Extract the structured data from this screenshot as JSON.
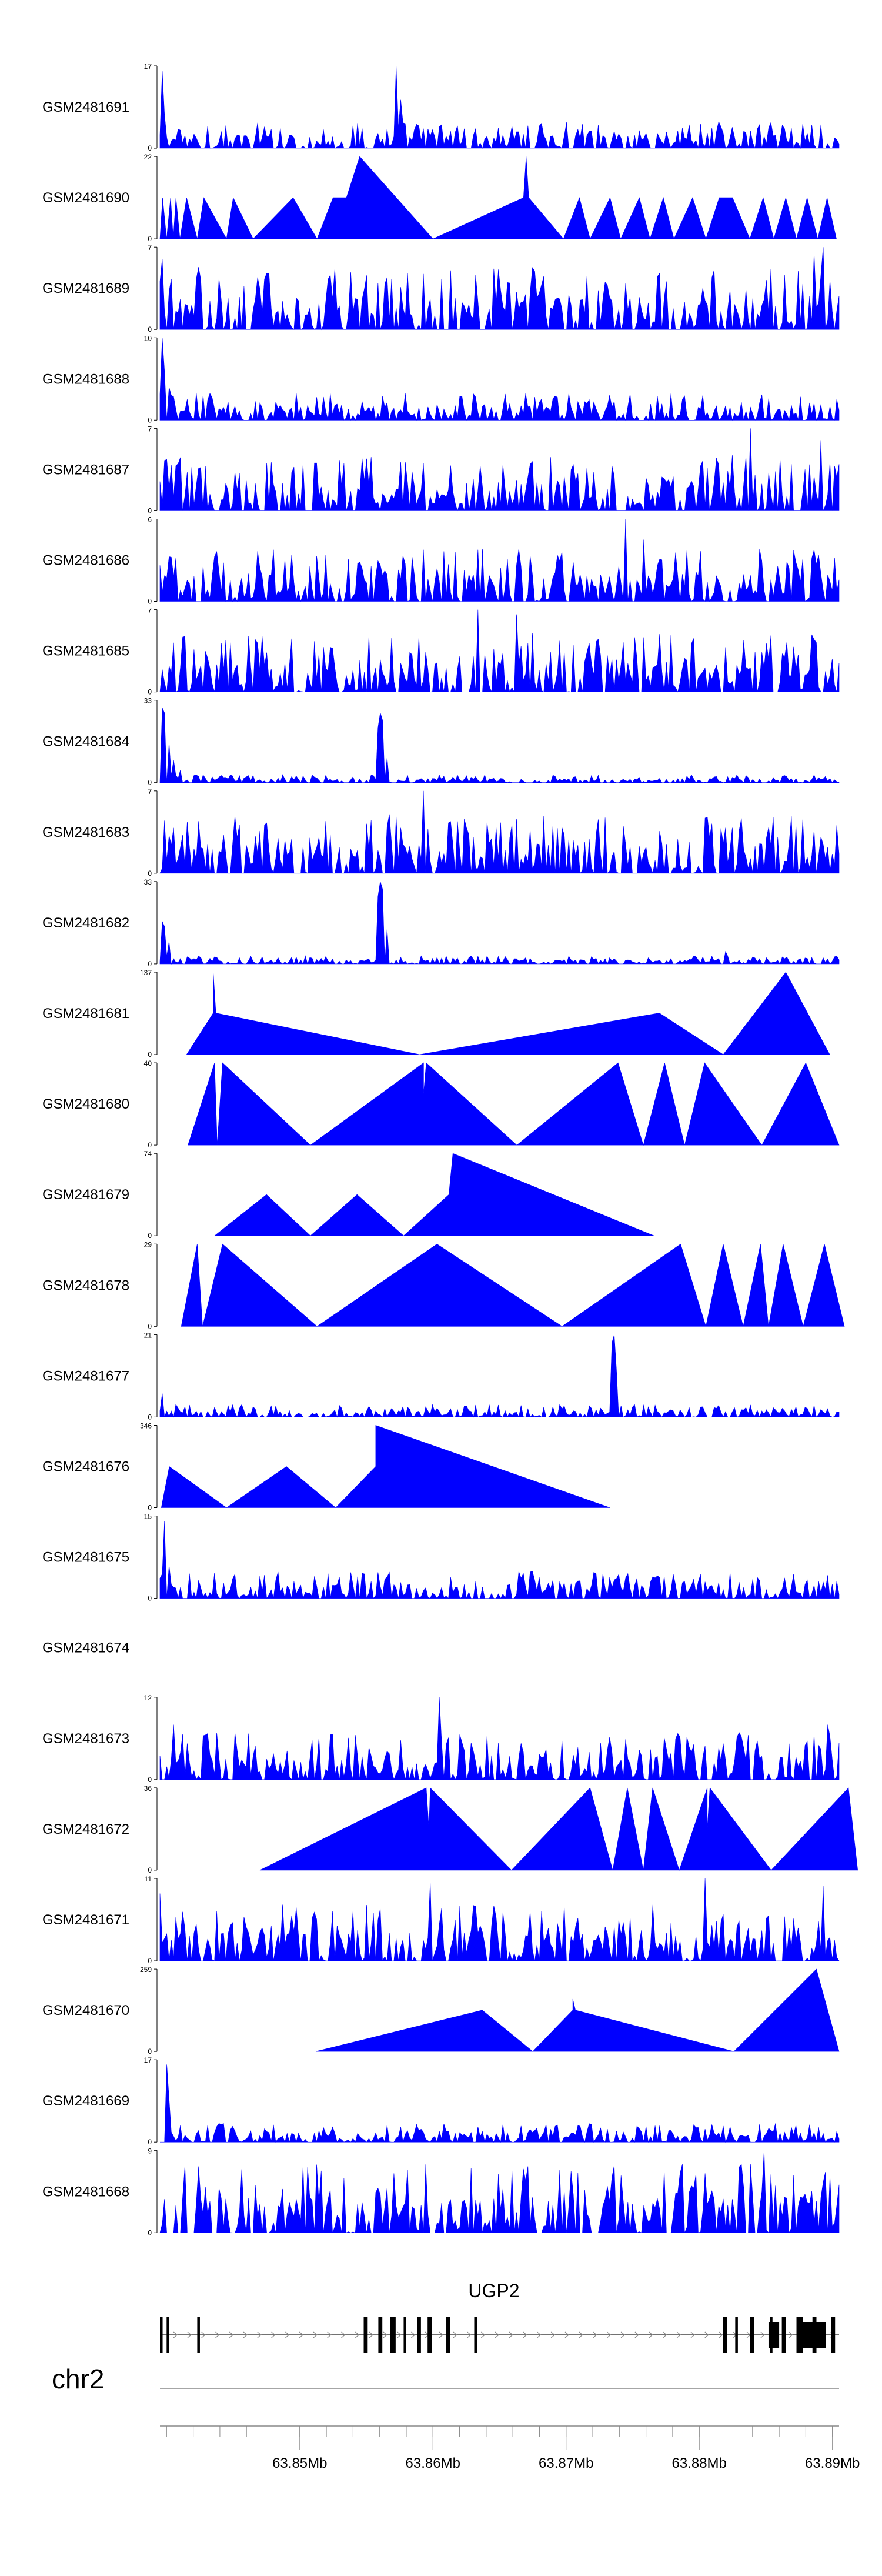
{
  "chart_data": {
    "type": "area",
    "title": "",
    "fill_color": "#0000FF",
    "chromosome": "chr2",
    "x_unit": "Mb",
    "xlim": [
      63.8395,
      63.8905
    ],
    "x_ticks": [
      63.85,
      63.86,
      63.87,
      63.88,
      63.89
    ],
    "x_tick_labels": [
      "63.85Mb",
      "63.86Mb",
      "63.87Mb",
      "63.88Mb",
      "63.89Mb"
    ],
    "gene": {
      "name": "UGP2",
      "start": 63.8395,
      "end": 63.8905,
      "strand": "+",
      "exons": [
        [
          63.8395,
          63.8397
        ],
        [
          63.84,
          63.8402
        ],
        [
          63.8423,
          63.8425
        ],
        [
          63.8548,
          63.8551
        ],
        [
          63.8559,
          63.8562
        ],
        [
          63.8568,
          63.8572
        ],
        [
          63.8578,
          63.858
        ],
        [
          63.8588,
          63.8591
        ],
        [
          63.8596,
          63.8599
        ],
        [
          63.861,
          63.8613
        ],
        [
          63.8631,
          63.8633
        ],
        [
          63.8818,
          63.8821
        ],
        [
          63.8827,
          63.8829
        ],
        [
          63.8838,
          63.8841
        ],
        [
          63.8853,
          63.8855
        ],
        [
          63.8862,
          63.8865
        ],
        [
          63.8873,
          63.8878
        ],
        [
          63.8885,
          63.8888
        ],
        [
          63.8899,
          63.8902
        ]
      ],
      "utr": [
        [
          63.8852,
          63.886
        ],
        [
          63.8877,
          63.8895
        ]
      ]
    },
    "series": [
      {
        "name": "GSM2481691",
        "ymax": 17,
        "mode": "dense",
        "anchors": [
          [
            63.8397,
            16
          ],
          [
            63.8399,
            7
          ],
          [
            63.8573,
            17
          ],
          [
            63.8575,
            10
          ],
          [
            63.8815,
            5.5
          ]
        ],
        "base": 2.5
      },
      {
        "name": "GSM2481690",
        "ymax": 22,
        "mode": "sparse",
        "points": [
          [
            63.8395,
            0
          ],
          [
            63.8397,
            11
          ],
          [
            63.84,
            0
          ],
          [
            63.8403,
            11
          ],
          [
            63.8405,
            0
          ],
          [
            63.8407,
            11
          ],
          [
            63.841,
            0
          ],
          [
            63.8415,
            11
          ],
          [
            63.8423,
            0
          ],
          [
            63.8428,
            11
          ],
          [
            63.8445,
            0
          ],
          [
            63.845,
            11
          ],
          [
            63.8465,
            0
          ],
          [
            63.8495,
            11
          ],
          [
            63.8513,
            0
          ],
          [
            63.8525,
            11
          ],
          [
            63.8535,
            11
          ],
          [
            63.8545,
            22
          ],
          [
            63.86,
            0
          ],
          [
            63.8668,
            11
          ],
          [
            63.867,
            22
          ],
          [
            63.8672,
            11
          ],
          [
            63.8698,
            0
          ],
          [
            63.871,
            11
          ],
          [
            63.8718,
            0
          ],
          [
            63.8733,
            11
          ],
          [
            63.8741,
            0
          ],
          [
            63.8755,
            11
          ],
          [
            63.8763,
            0
          ],
          [
            63.8773,
            11
          ],
          [
            63.8781,
            0
          ],
          [
            63.8795,
            11
          ],
          [
            63.8805,
            0
          ],
          [
            63.8815,
            11
          ],
          [
            63.8825,
            11
          ],
          [
            63.8838,
            0
          ],
          [
            63.8848,
            11
          ],
          [
            63.8856,
            0
          ],
          [
            63.8865,
            11
          ],
          [
            63.8873,
            0
          ],
          [
            63.8881,
            11
          ],
          [
            63.8889,
            0
          ],
          [
            63.8896,
            11
          ],
          [
            63.8903,
            0
          ]
        ]
      },
      {
        "name": "GSM2481689",
        "ymax": 7,
        "mode": "dense",
        "anchors": [
          [
            63.8397,
            6
          ],
          [
            63.8886,
            6.5
          ],
          [
            63.8893,
            7
          ]
        ],
        "base": 2.5
      },
      {
        "name": "GSM2481688",
        "ymax": 10,
        "mode": "dense",
        "anchors": [
          [
            63.8396,
            10
          ],
          [
            63.8398,
            6
          ],
          [
            63.8401,
            4
          ]
        ],
        "base": 1.6
      },
      {
        "name": "GSM2481687",
        "ymax": 7,
        "mode": "dense",
        "anchors": [
          [
            63.8408,
            4
          ],
          [
            63.8838,
            7
          ],
          [
            63.8892,
            6
          ]
        ],
        "base": 2.2
      },
      {
        "name": "GSM2481686",
        "ymax": 6,
        "mode": "dense",
        "anchors": [
          [
            63.8745,
            6
          ],
          [
            63.8758,
            4.5
          ]
        ],
        "base": 1.8
      },
      {
        "name": "GSM2481685",
        "ymax": 7,
        "mode": "dense",
        "anchors": [
          [
            63.8633,
            7
          ],
          [
            63.8662,
            6.6
          ],
          [
            63.8675,
            5
          ]
        ],
        "base": 2.3
      },
      {
        "name": "GSM2481684",
        "ymax": 33,
        "mode": "dense",
        "anchors": [
          [
            63.8396,
            30
          ],
          [
            63.8398,
            28
          ],
          [
            63.8402,
            16
          ],
          [
            63.8406,
            9
          ],
          [
            63.8411,
            5
          ],
          [
            63.8558,
            22
          ],
          [
            63.856,
            28
          ],
          [
            63.8562,
            25
          ],
          [
            63.8565,
            10
          ]
        ],
        "base": 1.5
      },
      {
        "name": "GSM2481683",
        "ymax": 7,
        "mode": "dense",
        "anchors": [
          [
            63.8593,
            7
          ],
          [
            63.8553,
            4.5
          ],
          [
            63.8568,
            5
          ]
        ],
        "base": 2.3
      },
      {
        "name": "GSM2481682",
        "ymax": 33,
        "mode": "dense",
        "anchors": [
          [
            63.8396,
            17
          ],
          [
            63.8398,
            15
          ],
          [
            63.8402,
            9
          ],
          [
            63.8558,
            27
          ],
          [
            63.856,
            33
          ],
          [
            63.8562,
            30
          ],
          [
            63.8565,
            14
          ],
          [
            63.8819,
            5
          ]
        ],
        "base": 1.5
      },
      {
        "name": "GSM2481681",
        "ymax": 137,
        "mode": "sparse",
        "points": [
          [
            63.8415,
            0
          ],
          [
            63.8435,
            69
          ],
          [
            63.8435,
            137
          ],
          [
            63.8437,
            69
          ],
          [
            63.859,
            0
          ],
          [
            63.877,
            69
          ],
          [
            63.8818,
            0
          ],
          [
            63.8865,
            137
          ],
          [
            63.8898,
            0
          ]
        ]
      },
      {
        "name": "GSM2481680",
        "ymax": 40,
        "mode": "sparse",
        "points": [
          [
            63.8416,
            0
          ],
          [
            63.8436,
            40
          ],
          [
            63.8438,
            0
          ],
          [
            63.8442,
            40
          ],
          [
            63.8508,
            0
          ],
          [
            63.8593,
            40
          ],
          [
            63.8593,
            25
          ],
          [
            63.8595,
            40
          ],
          [
            63.8663,
            0
          ],
          [
            63.8739,
            40
          ],
          [
            63.8758,
            0
          ],
          [
            63.8774,
            40
          ],
          [
            63.8789,
            0
          ],
          [
            63.8804,
            40
          ],
          [
            63.8847,
            0
          ],
          [
            63.888,
            40
          ],
          [
            63.8905,
            0
          ]
        ]
      },
      {
        "name": "GSM2481679",
        "ymax": 74,
        "mode": "sparse",
        "points": [
          [
            63.8436,
            0
          ],
          [
            63.8475,
            37
          ],
          [
            63.8508,
            0
          ],
          [
            63.8543,
            37
          ],
          [
            63.8578,
            0
          ],
          [
            63.8612,
            37
          ],
          [
            63.8615,
            74
          ],
          [
            63.8766,
            0
          ]
        ]
      },
      {
        "name": "GSM2481678",
        "ymax": 29,
        "mode": "sparse",
        "points": [
          [
            63.8411,
            0
          ],
          [
            63.8423,
            29
          ],
          [
            63.8427,
            0
          ],
          [
            63.8442,
            29
          ],
          [
            63.8513,
            0
          ],
          [
            63.8603,
            29
          ],
          [
            63.8697,
            0
          ],
          [
            63.8786,
            29
          ],
          [
            63.8805,
            0
          ],
          [
            63.8818,
            29
          ],
          [
            63.8833,
            0
          ],
          [
            63.8846,
            29
          ],
          [
            63.8852,
            0
          ],
          [
            63.8863,
            29
          ],
          [
            63.8878,
            0
          ],
          [
            63.8894,
            29
          ],
          [
            63.8909,
            0
          ]
        ]
      },
      {
        "name": "GSM2481677",
        "ymax": 21,
        "mode": "dense",
        "anchors": [
          [
            63.8396,
            6
          ],
          [
            63.8734,
            19
          ],
          [
            63.8736,
            21
          ],
          [
            63.8738,
            12
          ]
        ],
        "base": 1.5
      },
      {
        "name": "GSM2481676",
        "ymax": 346,
        "mode": "sparse",
        "points": [
          [
            63.8396,
            0
          ],
          [
            63.8402,
            173
          ],
          [
            63.8445,
            0
          ],
          [
            63.849,
            173
          ],
          [
            63.8527,
            0
          ],
          [
            63.8557,
            173
          ],
          [
            63.8557,
            346
          ],
          [
            63.8733,
            0
          ]
        ]
      },
      {
        "name": "GSM2481675",
        "ymax": 15,
        "mode": "dense",
        "anchors": [
          [
            63.8399,
            14
          ],
          [
            63.8402,
            6
          ]
        ],
        "base": 2.3
      },
      {
        "name": "GSM2481674",
        "ymax": null,
        "mode": "empty"
      },
      {
        "name": "GSM2481673",
        "ymax": 12,
        "mode": "dense",
        "anchors": [
          [
            63.8605,
            12
          ],
          [
            63.8405,
            8
          ],
          [
            63.8896,
            8
          ]
        ],
        "base": 3.2
      },
      {
        "name": "GSM2481672",
        "ymax": 36,
        "mode": "sparse",
        "points": [
          [
            63.847,
            0
          ],
          [
            63.8595,
            36
          ],
          [
            63.8597,
            18
          ],
          [
            63.8598,
            36
          ],
          [
            63.8659,
            0
          ],
          [
            63.8718,
            36
          ],
          [
            63.8735,
            0
          ],
          [
            63.8746,
            36
          ],
          [
            63.8758,
            0
          ],
          [
            63.8765,
            36
          ],
          [
            63.8785,
            0
          ],
          [
            63.8806,
            36
          ],
          [
            63.8806,
            18
          ],
          [
            63.8808,
            36
          ],
          [
            63.8854,
            0
          ],
          [
            63.8912,
            36
          ],
          [
            63.8919,
            0
          ]
        ]
      },
      {
        "name": "GSM2481671",
        "ymax": 11,
        "mode": "dense",
        "anchors": [
          [
            63.8395,
            9
          ],
          [
            63.8598,
            10.5
          ],
          [
            63.8805,
            11
          ],
          [
            63.8893,
            10
          ]
        ],
        "base": 3.5
      },
      {
        "name": "GSM2481670",
        "ymax": 259,
        "mode": "sparse",
        "points": [
          [
            63.8512,
            0
          ],
          [
            63.8637,
            130
          ],
          [
            63.8675,
            0
          ],
          [
            63.8705,
            130
          ],
          [
            63.8705,
            165
          ],
          [
            63.8707,
            130
          ],
          [
            63.8826,
            0
          ],
          [
            63.8888,
            259
          ],
          [
            63.8905,
            0
          ]
        ]
      },
      {
        "name": "GSM2481669",
        "ymax": 17,
        "mode": "dense",
        "anchors": [
          [
            63.84,
            16
          ],
          [
            63.8402,
            9
          ]
        ],
        "base": 1.8
      },
      {
        "name": "GSM2481668",
        "ymax": 9,
        "mode": "dense",
        "anchors": [
          [
            63.8848,
            9
          ]
        ],
        "base": 3.6
      }
    ]
  }
}
